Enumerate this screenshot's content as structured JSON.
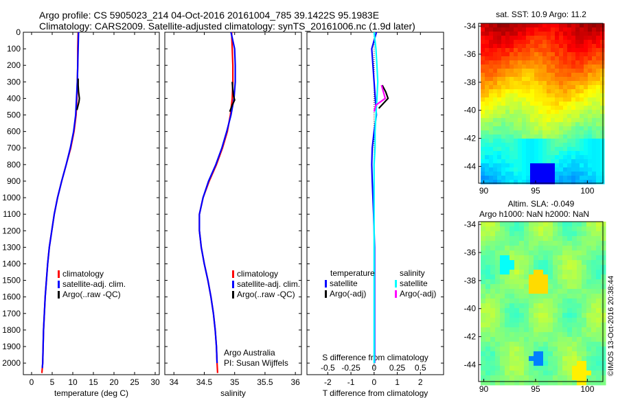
{
  "header": {
    "line1": "Argo profile: CS 5905023_214 04-Oct-2016 20161004_785 39.1422S 95.1983E",
    "line2": "Climatology: CARS2009. Satellite-adjusted climatology: synTS_20161006.nc (1.9d later)"
  },
  "credit": "©IMOS 13-Oct-2016 20:38:44",
  "chart_data": [
    {
      "type": "line",
      "title": "",
      "xlabel": "temperature (deg C)",
      "ylabel": "",
      "xlim": [
        -2,
        31
      ],
      "ylim": [
        2070,
        0
      ],
      "xticks": [
        0,
        5,
        10,
        15,
        20,
        25,
        30
      ],
      "yticks": [
        0,
        100,
        200,
        300,
        400,
        500,
        600,
        700,
        800,
        900,
        1000,
        1100,
        1200,
        1300,
        1400,
        1500,
        1600,
        1700,
        1800,
        1900,
        2000
      ],
      "legend": {
        "position": "lower-center",
        "entries": [
          "climatology",
          "satellite-adj. clim.",
          "Argo(..raw -QC)"
        ]
      },
      "series": [
        {
          "name": "climatology",
          "color": "#ff0000",
          "x": [
            11.3,
            11.2,
            11.2,
            11.1,
            11.0,
            10.8,
            10.3,
            9.5,
            8.4,
            7.3,
            6.3,
            5.5,
            4.9,
            4.3,
            3.9,
            3.6,
            3.3,
            3.1,
            2.9,
            2.8,
            2.7,
            2.6,
            2.5
          ],
          "y": [
            0,
            100,
            200,
            300,
            400,
            500,
            600,
            700,
            800,
            900,
            1000,
            1100,
            1200,
            1300,
            1400,
            1500,
            1600,
            1700,
            1800,
            1900,
            2000,
            2030,
            2060
          ]
        },
        {
          "name": "satellite-adj. clim.",
          "color": "#0000ff",
          "x": [
            11.4,
            11.3,
            11.2,
            11.1,
            10.9,
            10.7,
            10.2,
            9.4,
            8.4,
            7.3,
            6.3,
            5.5,
            4.9,
            4.3,
            3.9,
            3.6,
            3.3,
            3.1,
            2.9,
            2.8,
            2.7,
            2.6
          ],
          "y": [
            0,
            100,
            200,
            300,
            400,
            500,
            600,
            700,
            800,
            900,
            1000,
            1100,
            1200,
            1300,
            1400,
            1500,
            1600,
            1700,
            1800,
            1900,
            2000,
            2030
          ]
        },
        {
          "name": "Argo(..raw -QC)",
          "color": "#000000",
          "x": [
            11.3,
            11.3,
            11.4,
            11.6,
            11.5,
            11.3,
            11.0
          ],
          "y": [
            280,
            320,
            360,
            400,
            420,
            440,
            470
          ]
        }
      ]
    },
    {
      "type": "line",
      "title": "",
      "xlabel": "salinity",
      "ylabel": "",
      "xlim": [
        33.85,
        36.1
      ],
      "ylim": [
        2070,
        0
      ],
      "xticks": [
        34,
        34.5,
        35,
        35.5,
        36
      ],
      "xticklabels": [
        "34",
        "34.5",
        "35",
        "35.5",
        "36"
      ],
      "legend": {
        "position": "lower-center",
        "entries": [
          "climatology",
          "satellite-adj. clim.",
          "Argo(..raw -QC)"
        ]
      },
      "annotation": [
        "Argo Australia",
        "PI: Susan Wijffels"
      ],
      "series": [
        {
          "name": "climatology",
          "color": "#ff0000",
          "x": [
            34.95,
            34.96,
            34.97,
            34.97,
            34.96,
            34.93,
            34.88,
            34.8,
            34.7,
            34.58,
            34.48,
            34.42,
            34.42,
            34.45,
            34.5,
            34.56,
            34.61,
            34.65,
            34.68,
            34.7,
            34.71,
            34.72
          ],
          "y": [
            0,
            100,
            200,
            300,
            400,
            500,
            600,
            700,
            800,
            900,
            1000,
            1100,
            1200,
            1300,
            1400,
            1500,
            1600,
            1700,
            1800,
            1900,
            2000,
            2060
          ]
        },
        {
          "name": "satellite-adj. clim.",
          "color": "#0000ff",
          "x": [
            34.94,
            35.0,
            35.01,
            35.01,
            34.99,
            34.94,
            34.87,
            34.79,
            34.69,
            34.57,
            34.48,
            34.42,
            34.42,
            34.45,
            34.5,
            34.56,
            34.61,
            34.65,
            34.68,
            34.7,
            34.71
          ],
          "y": [
            0,
            100,
            200,
            300,
            400,
            500,
            600,
            700,
            800,
            900,
            1000,
            1100,
            1200,
            1300,
            1400,
            1500,
            1600,
            1700,
            1800,
            1900,
            2000
          ]
        },
        {
          "name": "Argo(..raw -QC)",
          "color": "#000000",
          "x": [
            34.96,
            34.97,
            34.98,
            35.0,
            34.96,
            34.92
          ],
          "y": [
            300,
            350,
            380,
            410,
            440,
            480
          ]
        }
      ]
    },
    {
      "type": "line",
      "title": "",
      "xlabel": "T difference from climatology",
      "xlabel2": "S difference from climatology",
      "xlim": [
        -2.9,
        3.0
      ],
      "xlim2": [
        -0.725,
        0.75
      ],
      "ylim": [
        2070,
        0
      ],
      "xticks": [
        -2,
        -1,
        0,
        1,
        2
      ],
      "xticks2": [
        -0.5,
        -0.25,
        0,
        0.25,
        0.5
      ],
      "xticklabels2": [
        "-0.5",
        "-0.25",
        "0",
        "0.25",
        "0.5"
      ],
      "legend": {
        "position": "lower-center",
        "groups": [
          {
            "title": "temperature",
            "entries": [
              "satellite",
              "Argo(-adj)"
            ]
          },
          {
            "title": "salinity",
            "entries": [
              "satellite",
              "Argo(-adj)"
            ]
          }
        ]
      },
      "series": [
        {
          "name": "temperature satellite",
          "color": "#0000ff",
          "x": [
            0.1,
            -0.1,
            -0.05,
            0.0,
            0.05,
            0.1,
            0.0,
            -0.08,
            -0.1,
            -0.08,
            -0.05,
            -0.02,
            0.0,
            0.02,
            0.02,
            0.02,
            0.02,
            0.02,
            0.02,
            0.02,
            0.02
          ],
          "y": [
            0,
            100,
            200,
            300,
            400,
            500,
            600,
            700,
            800,
            900,
            1000,
            1100,
            1200,
            1300,
            1400,
            1500,
            1600,
            1700,
            1800,
            1900,
            2000
          ]
        },
        {
          "name": "temperature Argo(-adj)",
          "color": "#000000",
          "x": [
            0.35,
            0.5,
            0.6,
            0.4,
            0.2
          ],
          "y": [
            320,
            360,
            400,
            430,
            460
          ]
        },
        {
          "name": "salinity satellite",
          "color": "#00ffff",
          "x": [
            0.0,
            0.02,
            0.03,
            0.04,
            0.03,
            0.02,
            0.01,
            0.01,
            0.0,
            0.0,
            0.0,
            0.0,
            0.0,
            0.0,
            0.0,
            0.0,
            0.0,
            0.0,
            0.0,
            0.0,
            0.0
          ],
          "y": [
            0,
            100,
            200,
            300,
            400,
            500,
            600,
            700,
            800,
            900,
            1000,
            1100,
            1200,
            1300,
            1400,
            1500,
            1600,
            1700,
            1800,
            1900,
            2000
          ]
        },
        {
          "name": "salinity Argo(-adj)",
          "color": "#ff00ff",
          "x": [
            0.08,
            0.1,
            0.12,
            0.02,
            0.0
          ],
          "y": [
            320,
            360,
            400,
            440,
            480
          ]
        }
      ]
    },
    {
      "type": "heatmap",
      "title": "sat. SST: 10.9  Argo: 11.2",
      "xlim": [
        89.5,
        101.5
      ],
      "ylim": [
        -45.2,
        -33.8
      ],
      "xticks": [
        90,
        95,
        100
      ],
      "yticks": [
        -34,
        -36,
        -38,
        -40,
        -42,
        -44
      ],
      "colormap": "jet"
    },
    {
      "type": "heatmap",
      "title": "Altim. SLA: -0.049",
      "subtitle": "Argo h1000: NaN h2000: NaN",
      "xlim": [
        89.5,
        101.5
      ],
      "ylim": [
        -45.2,
        -33.8
      ],
      "xticks": [
        90,
        95,
        100
      ],
      "yticks": [
        -34,
        -36,
        -38,
        -40,
        -42,
        -44
      ],
      "colormap": "jet"
    }
  ]
}
